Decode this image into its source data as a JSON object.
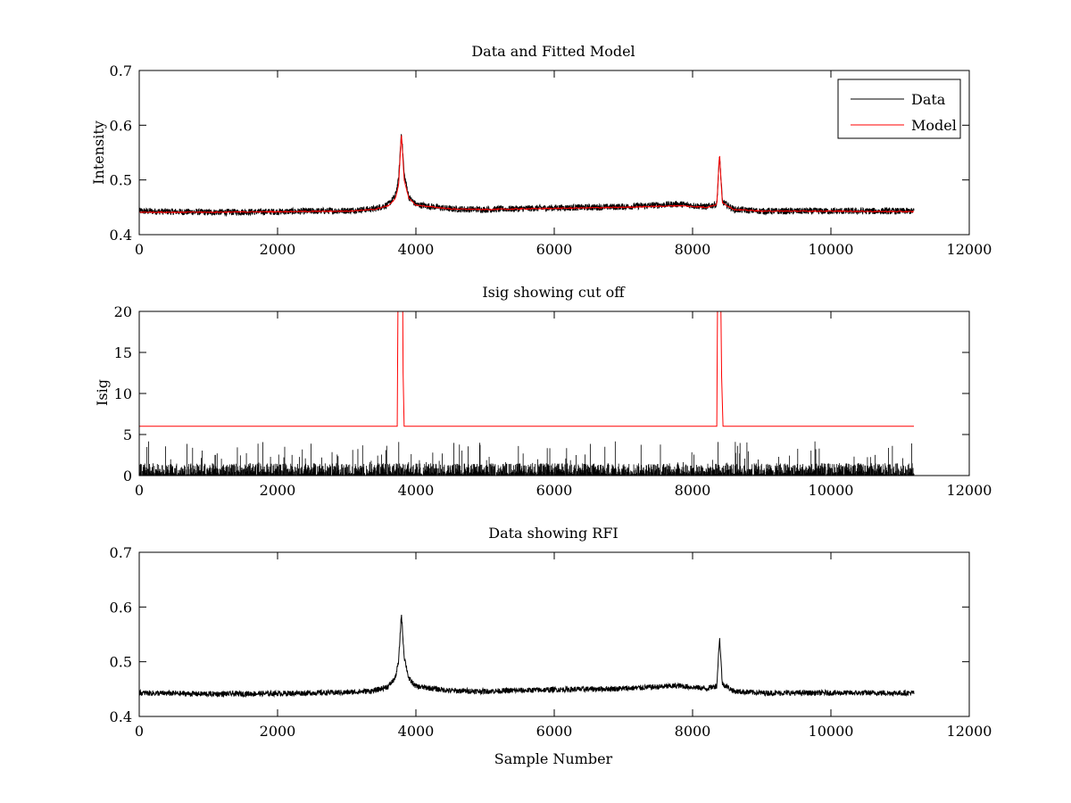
{
  "chart_data": [
    {
      "type": "line",
      "title": "Data and Fitted Model",
      "xlabel": "",
      "ylabel": "Intensity",
      "xlim": [
        0,
        12000
      ],
      "ylim": [
        0.4,
        0.7
      ],
      "xticks": [
        "0",
        "2000",
        "4000",
        "6000",
        "8000",
        "10000",
        "12000"
      ],
      "yticks": [
        "0.4",
        "0.5",
        "0.6",
        "0.7"
      ],
      "grid": false,
      "legend": "top-right",
      "series": [
        {
          "name": "Data",
          "color": "#000000",
          "style": "noisy",
          "noise_amplitude": 0.006,
          "points": [
            [
              0,
              0.443
            ],
            [
              1000,
              0.441
            ],
            [
              2000,
              0.442
            ],
            [
              3000,
              0.444
            ],
            [
              3400,
              0.447
            ],
            [
              3600,
              0.455
            ],
            [
              3700,
              0.47
            ],
            [
              3750,
              0.5
            ],
            [
              3790,
              0.588
            ],
            [
              3830,
              0.51
            ],
            [
              3900,
              0.468
            ],
            [
              4000,
              0.455
            ],
            [
              4500,
              0.447
            ],
            [
              5000,
              0.446
            ],
            [
              6000,
              0.449
            ],
            [
              7000,
              0.451
            ],
            [
              7800,
              0.456
            ],
            [
              8200,
              0.451
            ],
            [
              8350,
              0.456
            ],
            [
              8390,
              0.545
            ],
            [
              8430,
              0.46
            ],
            [
              8600,
              0.446
            ],
            [
              9000,
              0.443
            ],
            [
              10000,
              0.443
            ],
            [
              11200,
              0.443
            ]
          ]
        },
        {
          "name": "Model",
          "color": "#ff0000",
          "style": "smooth",
          "points": [
            [
              0,
              0.441
            ],
            [
              1000,
              0.441
            ],
            [
              2000,
              0.442
            ],
            [
              3000,
              0.443
            ],
            [
              3400,
              0.446
            ],
            [
              3600,
              0.453
            ],
            [
              3700,
              0.465
            ],
            [
              3750,
              0.49
            ],
            [
              3790,
              0.585
            ],
            [
              3830,
              0.5
            ],
            [
              3900,
              0.466
            ],
            [
              4000,
              0.454
            ],
            [
              4500,
              0.447
            ],
            [
              5000,
              0.446
            ],
            [
              6000,
              0.448
            ],
            [
              7000,
              0.45
            ],
            [
              7800,
              0.453
            ],
            [
              8200,
              0.45
            ],
            [
              8350,
              0.455
            ],
            [
              8390,
              0.548
            ],
            [
              8430,
              0.458
            ],
            [
              8600,
              0.446
            ],
            [
              9000,
              0.443
            ],
            [
              10000,
              0.443
            ],
            [
              11200,
              0.442
            ]
          ]
        }
      ]
    },
    {
      "type": "line",
      "title": "Isig showing cut off",
      "xlabel": "",
      "ylabel": "Isig",
      "xlim": [
        0,
        12000
      ],
      "ylim": [
        0,
        20
      ],
      "xticks": [
        "0",
        "2000",
        "4000",
        "6000",
        "8000",
        "10000",
        "12000"
      ],
      "yticks": [
        "0",
        "5",
        "10",
        "15",
        "20"
      ],
      "grid": false,
      "series": [
        {
          "color": "#000000",
          "style": "bars",
          "baseline": 0,
          "max_value": 4.2,
          "typical_value": 1.5,
          "x_range": [
            0,
            11200
          ]
        },
        {
          "color": "#ff0000",
          "style": "step",
          "points": [
            [
              0,
              6
            ],
            [
              3730,
              6
            ],
            [
              3740,
              20
            ],
            [
              3810,
              20
            ],
            [
              3815,
              12.5
            ],
            [
              3830,
              6
            ],
            [
              8350,
              6
            ],
            [
              8360,
              20
            ],
            [
              8410,
              20
            ],
            [
              8420,
              12
            ],
            [
              8440,
              6
            ],
            [
              11200,
              6
            ]
          ]
        }
      ]
    },
    {
      "type": "line",
      "title": "Data showing RFI",
      "xlabel": "Sample Number",
      "ylabel": "",
      "xlim": [
        0,
        12000
      ],
      "ylim": [
        0.4,
        0.7
      ],
      "xticks": [
        "0",
        "2000",
        "4000",
        "6000",
        "8000",
        "10000",
        "12000"
      ],
      "yticks": [
        "0.4",
        "0.5",
        "0.6",
        "0.7"
      ],
      "grid": false,
      "series": [
        {
          "color": "#000000",
          "style": "noisy",
          "noise_amplitude": 0.005,
          "points": [
            [
              0,
              0.443
            ],
            [
              1000,
              0.441
            ],
            [
              2000,
              0.442
            ],
            [
              3000,
              0.444
            ],
            [
              3400,
              0.447
            ],
            [
              3600,
              0.455
            ],
            [
              3700,
              0.47
            ],
            [
              3750,
              0.5
            ],
            [
              3790,
              0.588
            ],
            [
              3830,
              0.51
            ],
            [
              3900,
              0.468
            ],
            [
              4000,
              0.455
            ],
            [
              4500,
              0.447
            ],
            [
              5000,
              0.446
            ],
            [
              6000,
              0.449
            ],
            [
              7000,
              0.451
            ],
            [
              7800,
              0.456
            ],
            [
              8200,
              0.451
            ],
            [
              8350,
              0.456
            ],
            [
              8390,
              0.545
            ],
            [
              8430,
              0.46
            ],
            [
              8600,
              0.446
            ],
            [
              9000,
              0.443
            ],
            [
              10000,
              0.443
            ],
            [
              11200,
              0.443
            ]
          ]
        }
      ]
    }
  ]
}
